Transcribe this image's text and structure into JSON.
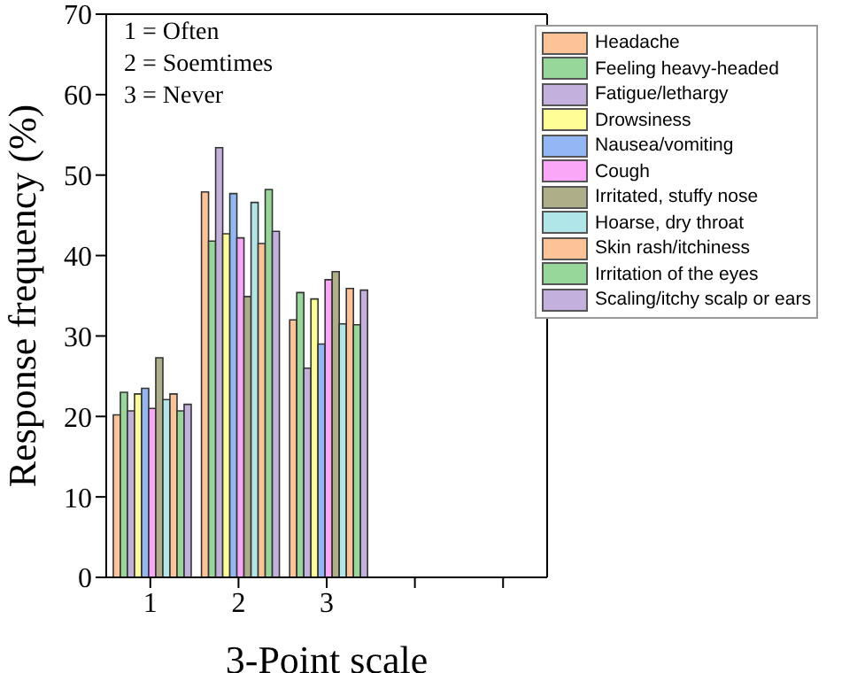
{
  "chart_data": {
    "type": "bar",
    "xlabel": "3-Point scale",
    "ylabel": "Response frequency (%)",
    "categories": [
      "1",
      "2",
      "3",
      null,
      null
    ],
    "series": [
      {
        "name": "Headache",
        "color": "#fdc397",
        "values": [
          20.2,
          47.9,
          32.0,
          null,
          null
        ]
      },
      {
        "name": "Feeling heavy-headed",
        "color": "#97d89a",
        "values": [
          23.0,
          41.8,
          35.4,
          null,
          null
        ]
      },
      {
        "name": "Fatigue/lethargy",
        "color": "#c4b0dc",
        "values": [
          20.7,
          53.4,
          26.0,
          null,
          null
        ]
      },
      {
        "name": "Drowsiness",
        "color": "#fffd96",
        "values": [
          22.8,
          42.7,
          34.6,
          null,
          null
        ]
      },
      {
        "name": "Nausea/vomiting",
        "color": "#93b7f4",
        "values": [
          23.5,
          47.7,
          29.0,
          null,
          null
        ]
      },
      {
        "name": "Cough",
        "color": "#fba7f7",
        "values": [
          21.0,
          42.2,
          37.0,
          null,
          null
        ]
      },
      {
        "name": "Irritated, stuffy nose",
        "color": "#aeae88",
        "values": [
          27.3,
          34.9,
          38.0,
          null,
          null
        ]
      },
      {
        "name": "Hoarse, dry throat",
        "color": "#b0e6e8",
        "values": [
          22.1,
          46.6,
          31.5,
          null,
          null
        ]
      },
      {
        "name": "Skin rash/itchiness",
        "color": "#fdc397",
        "values": [
          22.8,
          41.5,
          35.9,
          null,
          null
        ]
      },
      {
        "name": "Irritation of the eyes",
        "color": "#97d89a",
        "values": [
          20.7,
          48.2,
          31.4,
          null,
          null
        ]
      },
      {
        "name": "Scaling/itchy scalp or ears",
        "color": "#c4b0dc",
        "values": [
          21.5,
          43.0,
          35.7,
          null,
          null
        ]
      }
    ],
    "ylim": [
      0,
      70
    ],
    "yticks": [
      0,
      10,
      20,
      30,
      40,
      50,
      60,
      70
    ],
    "legend": "top right",
    "annotations": [
      "1 = Often",
      "2 = Soemtimes",
      "3 = Never"
    ]
  }
}
